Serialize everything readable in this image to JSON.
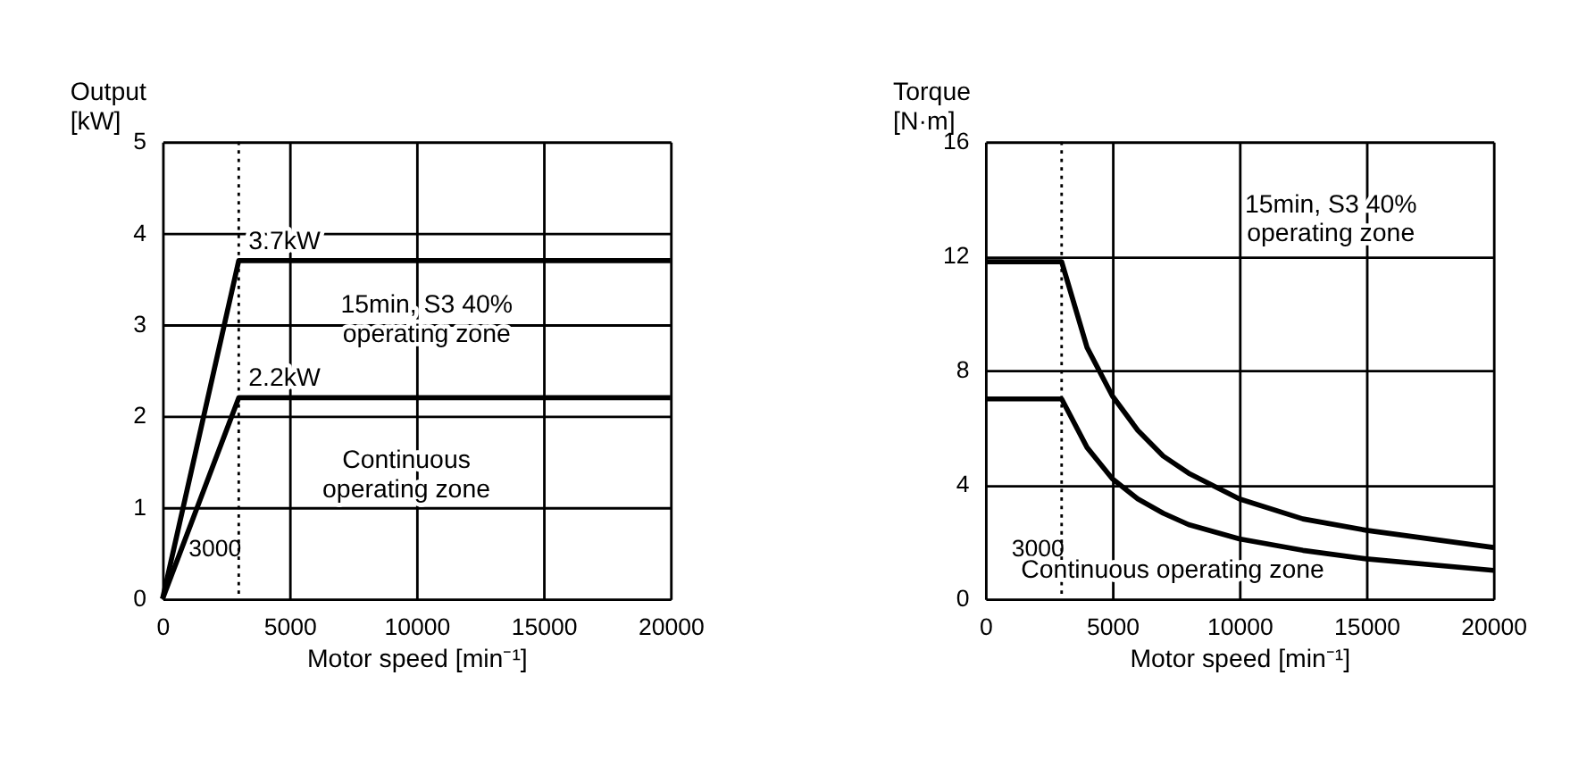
{
  "chart_data": [
    {
      "type": "line",
      "xlabel": "Motor speed [min⁻¹]",
      "ylabel": "Output\n[kW]",
      "series": [
        {
          "color": "#000000",
          "x": [
            0,
            3000,
            20000
          ],
          "values": [
            0,
            3.7,
            3.7
          ]
        },
        {
          "color": "#000000",
          "x": [
            0,
            3000,
            20000
          ],
          "values": [
            0,
            2.2,
            2.2
          ]
        }
      ],
      "xlim": [
        0,
        20000
      ],
      "xticks": [
        0,
        5000,
        10000,
        15000,
        20000
      ],
      "ylim": [
        0,
        5
      ],
      "yticks": [
        0,
        1,
        2,
        3,
        4,
        5
      ],
      "grid": true,
      "line_style": "solid",
      "marker": "none",
      "ref_lines": [
        {
          "axis": "x",
          "value": 3000,
          "label": "3000",
          "line_style": "dotted"
        }
      ],
      "annotations": [
        {
          "text": "3.7kW",
          "x": 4800,
          "y": 3.7
        },
        {
          "text": "2.2kW",
          "x": 4800,
          "y": 2.2
        },
        "15min, S3 40%\noperating zone",
        "Continuous\noperating zone"
      ]
    },
    {
      "type": "line",
      "xlabel": "Motor speed [min⁻¹]",
      "ylabel": "Torque\n[N·m]",
      "series": [
        {
          "color": "#000000",
          "x": [
            0,
            3000,
            4000,
            5000,
            6000,
            7000,
            8000,
            10000,
            12500,
            15000,
            20000
          ],
          "values": [
            11.8,
            11.8,
            8.8,
            7.1,
            5.9,
            5.0,
            4.4,
            3.5,
            2.8,
            2.4,
            1.8
          ]
        },
        {
          "color": "#000000",
          "x": [
            0,
            3000,
            4000,
            5000,
            6000,
            7000,
            8000,
            10000,
            12500,
            15000,
            20000
          ],
          "values": [
            7.0,
            7.0,
            5.3,
            4.2,
            3.5,
            3.0,
            2.6,
            2.1,
            1.7,
            1.4,
            1.0
          ]
        }
      ],
      "xlim": [
        0,
        20000
      ],
      "xticks": [
        0,
        5000,
        10000,
        15000,
        20000
      ],
      "ylim": [
        0,
        16
      ],
      "yticks": [
        0,
        4,
        8,
        12,
        16
      ],
      "grid": true,
      "line_style": "solid",
      "marker": "none",
      "ref_lines": [
        {
          "axis": "x",
          "value": 3000,
          "label": "3000",
          "line_style": "dotted"
        }
      ],
      "annotations": [
        "15min, S3 40%\noperating zone",
        "Continuous operating zone"
      ]
    }
  ]
}
